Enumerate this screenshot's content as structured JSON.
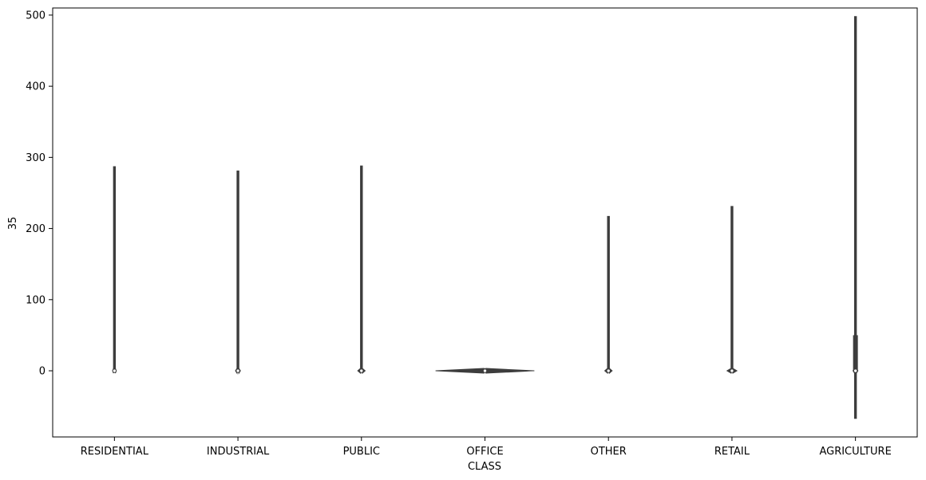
{
  "chart_data": {
    "type": "violin",
    "title": "",
    "xlabel": "CLASS",
    "ylabel": "35",
    "categories": [
      "RESIDENTIAL",
      "INDUSTRIAL",
      "PUBLIC",
      "OFFICE",
      "OTHER",
      "RETAIL",
      "AGRICULTURE"
    ],
    "ylim": [
      -93,
      510
    ],
    "yticks": [
      0,
      100,
      200,
      300,
      400,
      500
    ],
    "grid": false,
    "legend": "none",
    "colors": {
      "violin_stroke": "#3d3d3d",
      "median_fill": "#ffffff"
    },
    "violins": [
      {
        "category": "RESIDENTIAL",
        "min": 0,
        "max": 287,
        "q1": 0,
        "q3": 0,
        "median": 0,
        "max_half_width": 0.015
      },
      {
        "category": "INDUSTRIAL",
        "min": -2,
        "max": 281,
        "q1": 0,
        "q3": 0,
        "median": 0,
        "max_half_width": 0.02
      },
      {
        "category": "PUBLIC",
        "min": -2,
        "max": 288,
        "q1": 0,
        "q3": 0,
        "median": 0,
        "max_half_width": 0.03
      },
      {
        "category": "OFFICE",
        "min": -1,
        "max": 3,
        "q1": 0,
        "q3": 0,
        "median": 0,
        "max_half_width": 0.4
      },
      {
        "category": "OTHER",
        "min": -2,
        "max": 217,
        "q1": 0,
        "q3": 0,
        "median": 0,
        "max_half_width": 0.03
      },
      {
        "category": "RETAIL",
        "min": -1,
        "max": 231,
        "q1": 0,
        "q3": 0,
        "median": 0,
        "max_half_width": 0.04
      },
      {
        "category": "AGRICULTURE",
        "min": -67,
        "max": 498,
        "q1": 0,
        "q3": 50,
        "median": 0,
        "whisker_high": 93,
        "max_half_width": 0.02
      }
    ]
  }
}
